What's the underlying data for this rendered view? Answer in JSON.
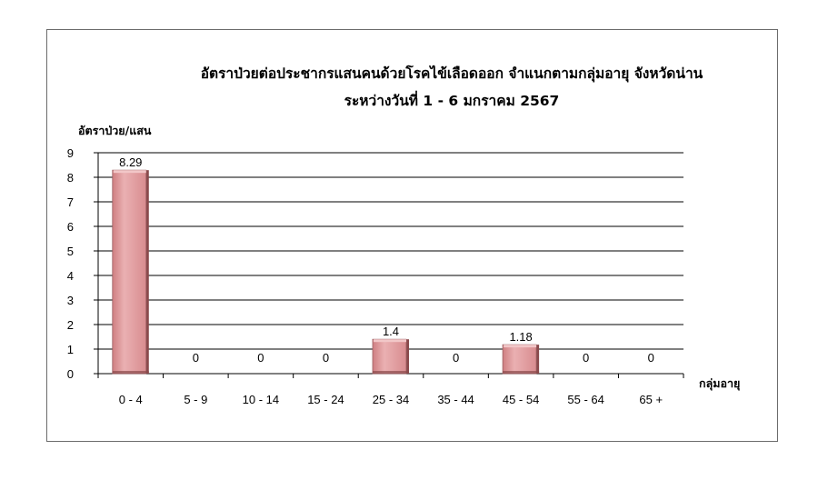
{
  "chart_data": {
    "type": "bar",
    "title_lines": [
      "อัตราป่วยต่อประชากรแสนคนด้วยโรคไข้เลือดออก จำแนกตามกลุ่มอายุ  จังหวัดน่าน",
      "ระหว่างวันที่  1 - 6 มกราคม 2567"
    ],
    "ylabel": "อัตราป่วย/แสน",
    "xlabel": "กลุ่มอายุ",
    "categories": [
      "0 - 4",
      "5 - 9",
      "10 - 14",
      "15 - 24",
      "25 - 34",
      "35 - 44",
      "45 - 54",
      "55 - 64",
      "65 +"
    ],
    "values": [
      8.29,
      0,
      0,
      0,
      1.4,
      0,
      1.18,
      0,
      0
    ],
    "data_labels": [
      "8.29",
      "0",
      "0",
      "0",
      "1.4",
      "0",
      "1.18",
      "0",
      "0"
    ],
    "ylim": [
      0,
      9
    ],
    "yticks": [
      0,
      1,
      2,
      3,
      4,
      5,
      6,
      7,
      8,
      9
    ],
    "grid": true,
    "legend": "none",
    "bar_style": "3d",
    "colors": {
      "bar_front": "#e8a0a2",
      "bar_top": "#f2c7c8",
      "bar_side": "#8a4a4c",
      "grid": "#000000",
      "frame": "#6b6b6b"
    }
  }
}
